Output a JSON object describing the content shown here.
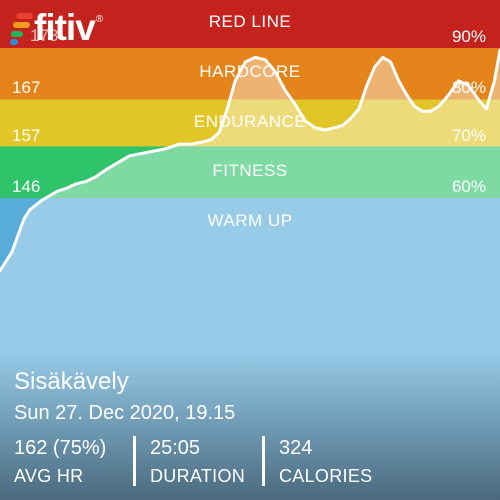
{
  "app": {
    "logo_text": "fitiv",
    "logo_reg": "®",
    "logo_colors": [
      "#e8412f",
      "#f29a1f",
      "#1fb35a",
      "#2a8fd8"
    ]
  },
  "chart_data": {
    "type": "area",
    "title": "",
    "xlabel": "",
    "ylabel": "",
    "ylim": [
      130,
      178
    ],
    "x_range": [
      0,
      25.08
    ],
    "zones": [
      {
        "name": "RED LINE",
        "hr_label": "178",
        "pct_label": "90%",
        "color": "#c4221c",
        "lower_hr": 178,
        "upper_hr": 189
      },
      {
        "name": "HARDCORE",
        "hr_label": "167",
        "pct_label": "80%",
        "color": "#e4841a",
        "lower_hr": 167,
        "upper_hr": 178
      },
      {
        "name": "ENDURANCE",
        "hr_label": "157",
        "pct_label": "70%",
        "color": "#e2c627",
        "lower_hr": 157,
        "upper_hr": 167
      },
      {
        "name": "FITNESS",
        "hr_label": "146",
        "pct_label": "60%",
        "color": "#2fc46a",
        "lower_hr": 146,
        "upper_hr": 157
      },
      {
        "name": "WARM UP",
        "hr_label": "",
        "pct_label": "",
        "color": "#58acd8",
        "lower_hr": 0,
        "upper_hr": 146
      }
    ],
    "series": [
      {
        "x": [
          0,
          0.3,
          0.6,
          0.9,
          1.2,
          1.5,
          1.8,
          2.1,
          2.5,
          2.9,
          3.3,
          3.8,
          4.3,
          4.8,
          5.3,
          5.9,
          6.5,
          7.1,
          7.7,
          8.3,
          9.0,
          9.6,
          10.2,
          10.6,
          11.0,
          11.4,
          11.8,
          12.3,
          12.8,
          13.3,
          13.8,
          14.3,
          14.8,
          15.3,
          15.8,
          16.3,
          16.8,
          17.2,
          17.6,
          18.0,
          18.4,
          18.8,
          19.2,
          19.6,
          20.0,
          20.4,
          20.8,
          21.2,
          21.6,
          22.0,
          22.5,
          23.0,
          23.5,
          24.0,
          24.4,
          24.8,
          25.08
        ],
        "y": [
          130.5,
          132.5,
          134.5,
          138,
          141.5,
          143.5,
          144.5,
          145.5,
          146.5,
          147.5,
          148,
          149,
          149.5,
          150.5,
          152,
          153.5,
          155,
          155.5,
          156,
          156.5,
          157.5,
          157.5,
          158,
          158.5,
          160,
          165,
          171,
          175,
          176,
          175.5,
          173,
          169,
          166,
          162.5,
          161,
          160.5,
          161,
          161.5,
          163,
          165,
          170,
          174,
          176,
          175,
          171,
          168,
          165.5,
          164.5,
          164.5,
          165.5,
          168,
          171,
          170,
          167,
          165,
          171,
          177.5
        ]
      }
    ]
  },
  "activity": {
    "name": "Sisäkävely",
    "date": "Sun 27. Dec 2020, 19.15"
  },
  "stats": [
    {
      "value": "162 (75%)",
      "label": "AVG HR"
    },
    {
      "value": "25:05",
      "label": "DURATION"
    },
    {
      "value": "324",
      "label": "CALORIES"
    }
  ]
}
